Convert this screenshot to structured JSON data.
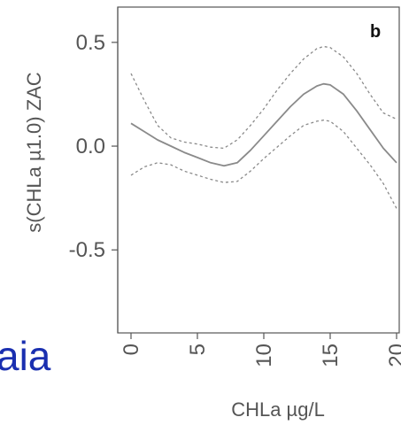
{
  "chart_data": {
    "type": "line",
    "panel_label": "b",
    "xlabel": "CHLa µg/L",
    "ylabel": "s(CHLa  µ1.0) ZAC",
    "xlim": [
      -1,
      20.2
    ],
    "ylim": [
      -0.9,
      0.67
    ],
    "x_ticks": [
      0,
      5,
      10,
      15,
      20
    ],
    "y_ticks": [
      0.5,
      0.0,
      -0.5
    ],
    "y_tick_labels": [
      "0.5",
      "0.0",
      "-0.5"
    ],
    "grid": false,
    "colors": {
      "fit": "#8a8a8a",
      "ci": "#8a8a8a",
      "axis": "#555555"
    },
    "series": [
      {
        "role": "fit",
        "line_style": "solid",
        "x": [
          0,
          1,
          2,
          3,
          4,
          5,
          6,
          7,
          8,
          9,
          10,
          11,
          12,
          13,
          14,
          14.5,
          15,
          16,
          17,
          18,
          19,
          20
        ],
        "y": [
          0.11,
          0.07,
          0.03,
          0.0,
          -0.03,
          -0.055,
          -0.08,
          -0.095,
          -0.08,
          -0.02,
          0.05,
          0.12,
          0.19,
          0.25,
          0.29,
          0.3,
          0.295,
          0.25,
          0.17,
          0.08,
          -0.01,
          -0.08
        ]
      },
      {
        "role": "upper",
        "line_style": "dashed",
        "x": [
          0,
          1,
          2,
          3,
          4,
          5,
          6,
          7,
          8,
          9,
          10,
          11,
          12,
          13,
          14,
          14.5,
          15,
          16,
          17,
          18,
          19,
          20
        ],
        "y": [
          0.35,
          0.22,
          0.1,
          0.04,
          0.02,
          0.01,
          -0.005,
          -0.01,
          0.03,
          0.1,
          0.18,
          0.27,
          0.35,
          0.42,
          0.47,
          0.48,
          0.475,
          0.43,
          0.35,
          0.25,
          0.16,
          0.13
        ]
      },
      {
        "role": "lower",
        "line_style": "dashed",
        "x": [
          0,
          1,
          2,
          3,
          4,
          5,
          6,
          7,
          8,
          9,
          10,
          11,
          12,
          13,
          14,
          14.5,
          15,
          16,
          17,
          18,
          19,
          20
        ],
        "y": [
          -0.14,
          -0.1,
          -0.08,
          -0.09,
          -0.12,
          -0.14,
          -0.16,
          -0.175,
          -0.17,
          -0.12,
          -0.06,
          -0.005,
          0.05,
          0.1,
          0.12,
          0.125,
          0.12,
          0.07,
          -0.01,
          -0.09,
          -0.18,
          -0.3
        ]
      }
    ]
  },
  "slide_fragment": {
    "text": "aia"
  }
}
